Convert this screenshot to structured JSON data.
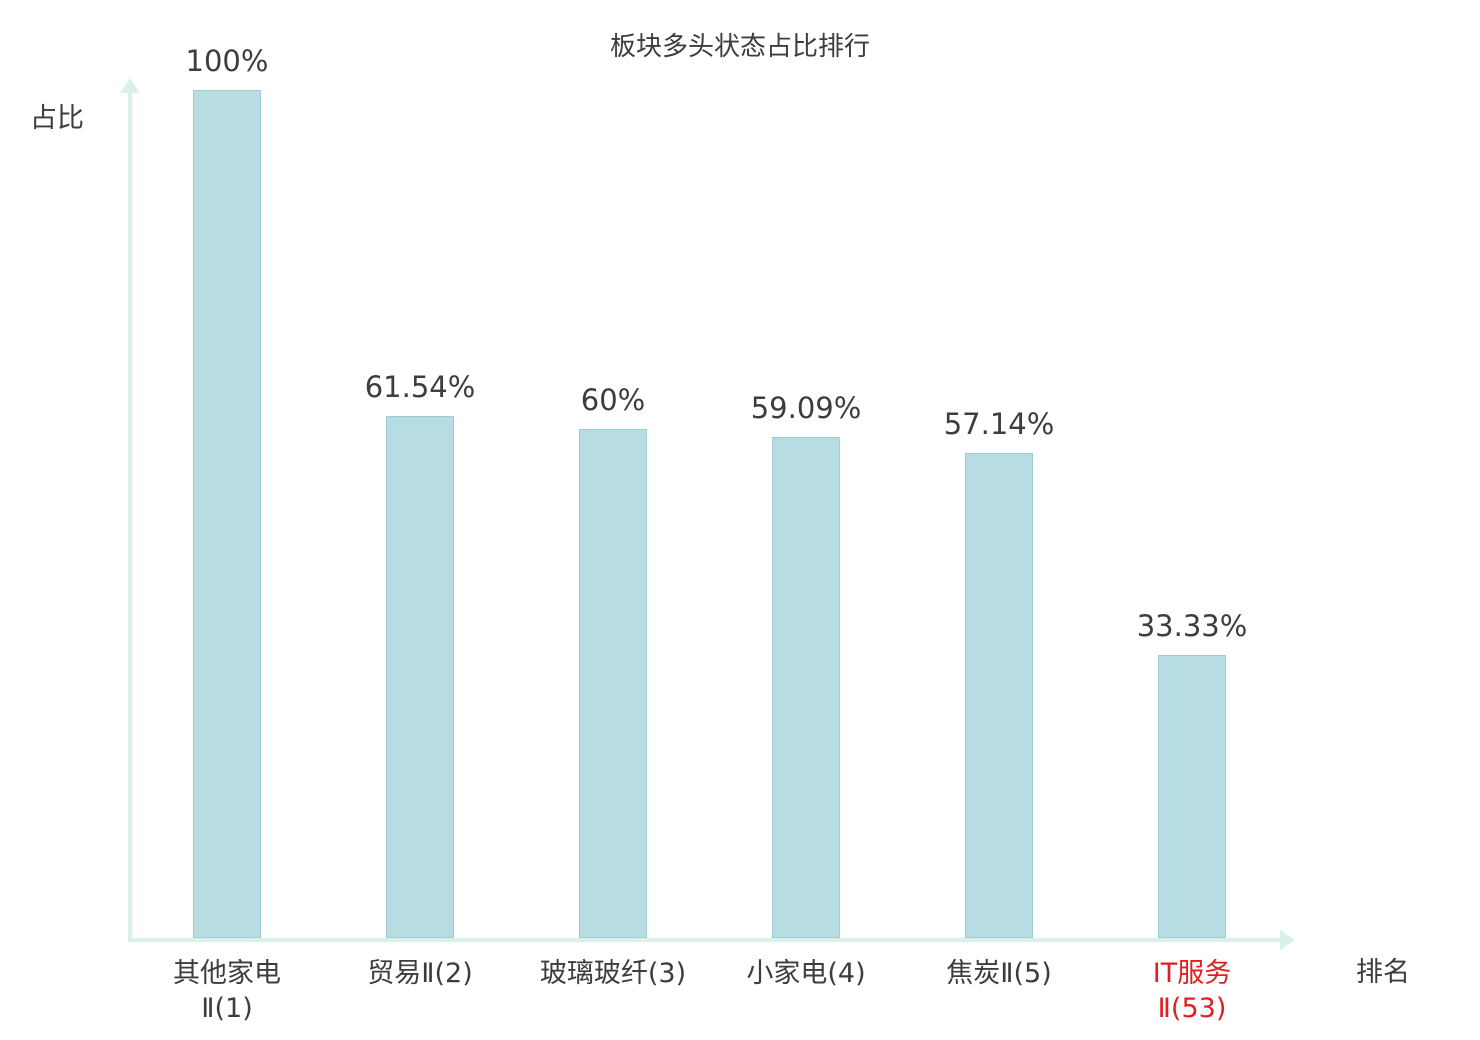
{
  "chart_data": {
    "type": "bar",
    "title": "板块多头状态占比排行",
    "xlabel": "排名",
    "ylabel": "占比",
    "ylim": [
      0,
      100
    ],
    "grid": false,
    "legend": null,
    "categories": [
      "其他家电Ⅱ(1)",
      "贸易Ⅱ(2)",
      "玻璃玻纤(3)",
      "小家电(4)",
      "焦炭Ⅱ(5)",
      "IT服务Ⅱ(53)"
    ],
    "values": [
      100,
      61.54,
      60,
      59.09,
      57.14,
      33.33
    ],
    "bars": [
      {
        "category_lines": [
          "其他家电",
          "Ⅱ(1)"
        ],
        "value": 100,
        "value_label": "100%",
        "highlight": false
      },
      {
        "category_lines": [
          "贸易Ⅱ(2)"
        ],
        "value": 61.54,
        "value_label": "61.54%",
        "highlight": false
      },
      {
        "category_lines": [
          "玻璃玻纤(3)"
        ],
        "value": 60,
        "value_label": "60%",
        "highlight": false
      },
      {
        "category_lines": [
          "小家电(4)"
        ],
        "value": 59.09,
        "value_label": "59.09%",
        "highlight": false
      },
      {
        "category_lines": [
          "焦炭Ⅱ(5)"
        ],
        "value": 57.14,
        "value_label": "57.14%",
        "highlight": false
      },
      {
        "category_lines": [
          "IT服务",
          "Ⅱ(53)"
        ],
        "value": 33.33,
        "value_label": "33.33%",
        "highlight": true
      }
    ],
    "colors": {
      "bar_fill": "#b7dde3",
      "bar_border": "#9dccd5",
      "axis": "#d9f1e9",
      "text": "#3d3d3d",
      "highlight": "#e02020"
    }
  }
}
